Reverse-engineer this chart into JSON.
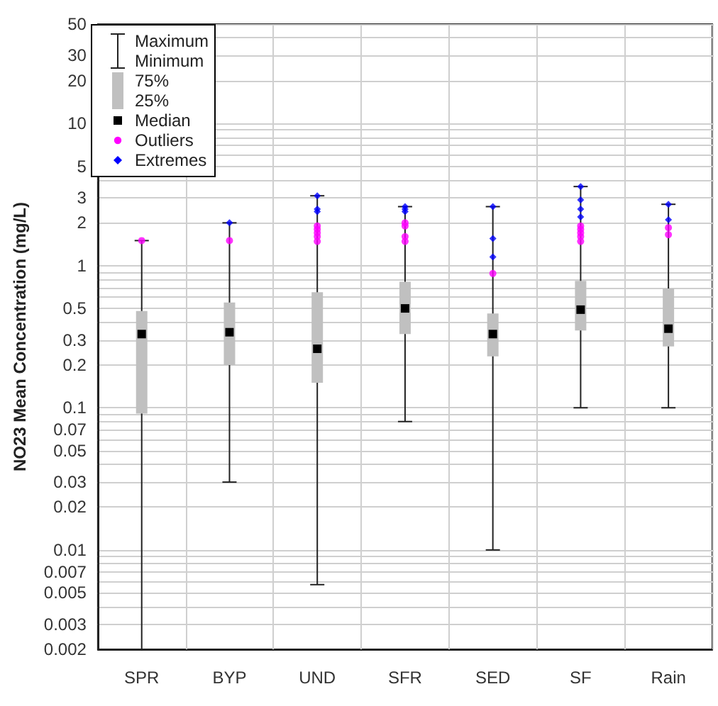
{
  "chart_data": {
    "type": "box",
    "ylabel": "NO23 Mean Concentration (mg/L)",
    "categories": [
      "SPR",
      "BYP",
      "UND",
      "SFR",
      "SED",
      "SF",
      "Rain"
    ],
    "log": "y",
    "grid": true,
    "legend": "top left",
    "annotations": [
      "Maximum\nMinimum",
      "Median"
    ],
    "ylim": [
      0.002,
      50
    ],
    "yticks": [
      0.002,
      0.003,
      {
        "value": 0.004,
        "label": null
      },
      0.005,
      {
        "value": 0.006,
        "label": null
      },
      0.007,
      {
        "value": 0.008,
        "label": null
      },
      {
        "value": 0.009,
        "label": null
      },
      0.01,
      0.02,
      0.03,
      {
        "value": 0.04,
        "label": null
      },
      0.05,
      {
        "value": 0.06,
        "label": null
      },
      0.07,
      {
        "value": 0.08,
        "label": null
      },
      {
        "value": 0.09,
        "label": null
      },
      0.1,
      0.2,
      0.3,
      {
        "value": 0.4,
        "label": null
      },
      0.5,
      {
        "value": 0.6,
        "label": null
      },
      {
        "value": 0.7,
        "label": null
      },
      {
        "value": 0.8,
        "label": null
      },
      {
        "value": 0.9,
        "label": null
      },
      1,
      2,
      3,
      {
        "value": 4,
        "label": null
      },
      5,
      {
        "value": 6,
        "label": null
      },
      {
        "value": 7,
        "label": null
      },
      {
        "value": 8,
        "label": null
      },
      {
        "value": 9,
        "label": null
      },
      10,
      20,
      30,
      {
        "value": 40,
        "label": null
      },
      50
    ],
    "series": [
      {
        "name": "75%\n25%",
        "color": "#c0c0c0",
        "boxes": [
          {
            "low": 0.002,
            "q1": 0.091,
            "median": 0.33,
            "q3": 0.48,
            "high": 1.5
          },
          {
            "low": 0.03,
            "q1": 0.2,
            "median": 0.34,
            "q3": 0.55,
            "high": 2.0
          },
          {
            "low": 0.0057,
            "q1": 0.15,
            "median": 0.26,
            "q3": 0.65,
            "high": 3.1
          },
          {
            "low": 0.08,
            "q1": 0.33,
            "median": 0.5,
            "q3": 0.77,
            "high": 2.6
          },
          {
            "low": 0.01,
            "q1": 0.23,
            "median": 0.33,
            "q3": 0.46,
            "high": 2.6
          },
          {
            "low": 0.1,
            "q1": 0.35,
            "median": 0.49,
            "q3": 0.78,
            "high": 3.6
          },
          {
            "low": 0.1,
            "q1": 0.27,
            "median": 0.36,
            "q3": 0.69,
            "high": 2.7
          }
        ]
      },
      {
        "type": "scatter",
        "name": "Outliers",
        "color": "#ff00ff",
        "marker": "circle",
        "x": [
          "SPR",
          "BYP",
          "UND",
          "UND",
          "UND",
          "UND",
          "UND",
          "SFR",
          "SFR",
          "SFR",
          "SFR",
          "SED",
          "SF",
          "SF",
          "SF",
          "SF",
          "SF",
          "Rain",
          "Rain"
        ],
        "values": [
          1.5,
          1.5,
          1.9,
          1.8,
          1.7,
          1.6,
          1.48,
          2.0,
          1.9,
          1.6,
          1.48,
          0.88,
          1.9,
          1.8,
          1.7,
          1.6,
          1.48,
          1.85,
          1.65
        ]
      },
      {
        "type": "scatter",
        "name": "Extremes",
        "color": "#0000ff",
        "marker": "diamond",
        "x": [
          "BYP",
          "UND",
          "UND",
          "UND",
          "SFR",
          "SFR",
          "SFR",
          "SED",
          "SED",
          "SED",
          "SF",
          "SF",
          "SF",
          "SF",
          "Rain",
          "Rain"
        ],
        "values": [
          2.0,
          3.1,
          2.5,
          2.4,
          2.6,
          2.5,
          2.4,
          2.6,
          1.55,
          1.15,
          3.6,
          2.9,
          2.5,
          2.2,
          2.7,
          2.1
        ]
      }
    ]
  }
}
